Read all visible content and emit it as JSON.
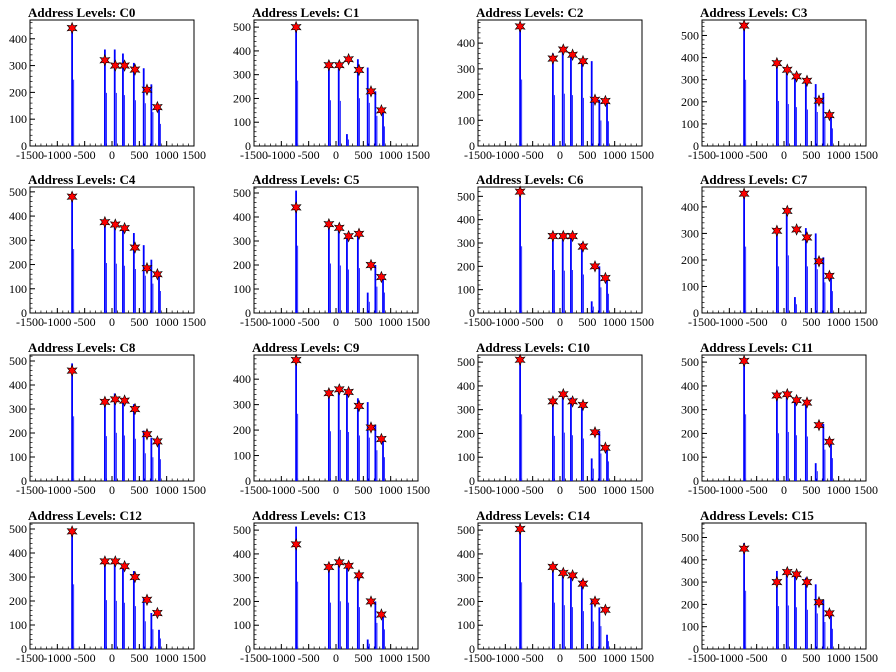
{
  "chart_data": [
    {
      "type": "bar",
      "title": "Address Levels: C0",
      "ylim": [
        0,
        470
      ],
      "yticks": [
        0,
        100,
        200,
        300,
        400
      ],
      "xlim": [
        -1500,
        1500
      ],
      "xticks": [
        -1500,
        -1000,
        -500,
        0,
        500,
        1000,
        1500
      ],
      "x": [
        -730,
        -130,
        50,
        200,
        400,
        580,
        720,
        860
      ],
      "values": [
        450,
        360,
        360,
        345,
        310,
        290,
        230,
        150
      ],
      "peaks": [
        {
          "x": -730,
          "y": 440
        },
        {
          "x": -130,
          "y": 320
        },
        {
          "x": 60,
          "y": 300
        },
        {
          "x": 230,
          "y": 300
        },
        {
          "x": 420,
          "y": 285
        },
        {
          "x": 640,
          "y": 210
        },
        {
          "x": 830,
          "y": 145
        }
      ]
    },
    {
      "type": "bar",
      "title": "Address Levels: C1",
      "ylim": [
        0,
        530
      ],
      "yticks": [
        0,
        100,
        200,
        300,
        400,
        500
      ],
      "xlim": [
        -1500,
        1500
      ],
      "xticks": [
        -1500,
        -1000,
        -500,
        0,
        500,
        1000,
        1500
      ],
      "x": [
        -730,
        -130,
        50,
        200,
        400,
        580,
        720,
        860
      ],
      "values": [
        500,
        350,
        345,
        50,
        365,
        330,
        230,
        150
      ],
      "peaks": [
        {
          "x": -730,
          "y": 500
        },
        {
          "x": -130,
          "y": 340
        },
        {
          "x": 60,
          "y": 340
        },
        {
          "x": 230,
          "y": 365
        },
        {
          "x": 420,
          "y": 320
        },
        {
          "x": 640,
          "y": 230
        },
        {
          "x": 830,
          "y": 150
        }
      ]
    },
    {
      "type": "bar",
      "title": "Address Levels: C2",
      "ylim": [
        0,
        490
      ],
      "yticks": [
        0,
        100,
        200,
        300,
        400
      ],
      "xlim": [
        -1500,
        1500
      ],
      "xticks": [
        -1500,
        -1000,
        -500,
        0,
        500,
        1000,
        1500
      ],
      "x": [
        -730,
        -130,
        50,
        200,
        400,
        580,
        720,
        860
      ],
      "values": [
        470,
        360,
        370,
        360,
        340,
        330,
        180,
        175
      ],
      "peaks": [
        {
          "x": -730,
          "y": 465
        },
        {
          "x": -130,
          "y": 340
        },
        {
          "x": 60,
          "y": 375
        },
        {
          "x": 230,
          "y": 355
        },
        {
          "x": 420,
          "y": 330
        },
        {
          "x": 640,
          "y": 180
        },
        {
          "x": 830,
          "y": 175
        }
      ]
    },
    {
      "type": "bar",
      "title": "Address Levels: C3",
      "ylim": [
        0,
        570
      ],
      "yticks": [
        0,
        100,
        200,
        300,
        400,
        500
      ],
      "xlim": [
        -1500,
        1500
      ],
      "xticks": [
        -1500,
        -1000,
        -500,
        0,
        500,
        1000,
        1500
      ],
      "x": [
        -730,
        -130,
        50,
        200,
        400,
        580,
        720,
        860
      ],
      "values": [
        545,
        370,
        345,
        320,
        300,
        280,
        240,
        145
      ],
      "peaks": [
        {
          "x": -730,
          "y": 545
        },
        {
          "x": -130,
          "y": 375
        },
        {
          "x": 60,
          "y": 345
        },
        {
          "x": 230,
          "y": 315
        },
        {
          "x": 420,
          "y": 295
        },
        {
          "x": 640,
          "y": 205
        },
        {
          "x": 830,
          "y": 140
        }
      ]
    },
    {
      "type": "bar",
      "title": "Address Levels: C4",
      "ylim": [
        0,
        520
      ],
      "yticks": [
        0,
        100,
        200,
        300,
        400,
        500
      ],
      "xlim": [
        -1500,
        1500
      ],
      "xticks": [
        -1500,
        -1000,
        -500,
        0,
        500,
        1000,
        1500
      ],
      "x": [
        -730,
        -130,
        50,
        200,
        400,
        580,
        720,
        860
      ],
      "values": [
        480,
        375,
        370,
        355,
        330,
        280,
        220,
        165
      ],
      "peaks": [
        {
          "x": -730,
          "y": 480
        },
        {
          "x": -130,
          "y": 375
        },
        {
          "x": 60,
          "y": 365
        },
        {
          "x": 230,
          "y": 350
        },
        {
          "x": 420,
          "y": 270
        },
        {
          "x": 640,
          "y": 185
        },
        {
          "x": 830,
          "y": 160
        }
      ]
    },
    {
      "type": "bar",
      "title": "Address Levels: C5",
      "ylim": [
        0,
        525
      ],
      "yticks": [
        0,
        100,
        200,
        300,
        400,
        500
      ],
      "xlim": [
        -1500,
        1500
      ],
      "xticks": [
        -1500,
        -1000,
        -500,
        0,
        500,
        1000,
        1500
      ],
      "x": [
        -730,
        -130,
        50,
        200,
        400,
        580,
        720,
        860
      ],
      "values": [
        510,
        375,
        360,
        330,
        340,
        85,
        200,
        155
      ],
      "peaks": [
        {
          "x": -730,
          "y": 440
        },
        {
          "x": -130,
          "y": 370
        },
        {
          "x": 60,
          "y": 355
        },
        {
          "x": 230,
          "y": 320
        },
        {
          "x": 420,
          "y": 330
        },
        {
          "x": 640,
          "y": 200
        },
        {
          "x": 830,
          "y": 150
        }
      ]
    },
    {
      "type": "bar",
      "title": "Address Levels: C6",
      "ylim": [
        0,
        540
      ],
      "yticks": [
        0,
        100,
        200,
        300,
        400,
        500
      ],
      "xlim": [
        -1500,
        1500
      ],
      "xticks": [
        -1500,
        -1000,
        -500,
        0,
        500,
        1000,
        1500
      ],
      "x": [
        -730,
        -130,
        50,
        200,
        400,
        580,
        720,
        860
      ],
      "values": [
        520,
        335,
        330,
        335,
        300,
        50,
        200,
        150
      ],
      "peaks": [
        {
          "x": -730,
          "y": 520
        },
        {
          "x": -130,
          "y": 330
        },
        {
          "x": 60,
          "y": 330
        },
        {
          "x": 230,
          "y": 330
        },
        {
          "x": 420,
          "y": 285
        },
        {
          "x": 640,
          "y": 200
        },
        {
          "x": 830,
          "y": 150
        }
      ]
    },
    {
      "type": "bar",
      "title": "Address Levels: C7",
      "ylim": [
        0,
        475
      ],
      "yticks": [
        0,
        100,
        200,
        300,
        400
      ],
      "xlim": [
        -1500,
        1500
      ],
      "xticks": [
        -1500,
        -1000,
        -500,
        0,
        500,
        1000,
        1500
      ],
      "x": [
        -730,
        -130,
        50,
        200,
        400,
        580,
        720,
        860
      ],
      "values": [
        455,
        320,
        395,
        60,
        320,
        300,
        210,
        150
      ],
      "peaks": [
        {
          "x": -730,
          "y": 450
        },
        {
          "x": -130,
          "y": 310
        },
        {
          "x": 60,
          "y": 385
        },
        {
          "x": 230,
          "y": 315
        },
        {
          "x": 420,
          "y": 285
        },
        {
          "x": 640,
          "y": 195
        },
        {
          "x": 830,
          "y": 140
        }
      ]
    },
    {
      "type": "bar",
      "title": "Address Levels: C8",
      "ylim": [
        0,
        525
      ],
      "yticks": [
        0,
        100,
        200,
        300,
        400,
        500
      ],
      "xlim": [
        -1500,
        1500
      ],
      "xticks": [
        -1500,
        -1000,
        -500,
        0,
        500,
        1000,
        1500
      ],
      "x": [
        -730,
        -130,
        50,
        200,
        400,
        580,
        720,
        860
      ],
      "values": [
        490,
        340,
        365,
        345,
        320,
        210,
        180,
        165
      ],
      "peaks": [
        {
          "x": -730,
          "y": 460
        },
        {
          "x": -130,
          "y": 330
        },
        {
          "x": 60,
          "y": 340
        },
        {
          "x": 230,
          "y": 335
        },
        {
          "x": 420,
          "y": 300
        },
        {
          "x": 640,
          "y": 195
        },
        {
          "x": 830,
          "y": 165
        }
      ]
    },
    {
      "type": "bar",
      "title": "Address Levels: C9",
      "ylim": [
        0,
        495
      ],
      "yticks": [
        0,
        100,
        200,
        300,
        400
      ],
      "xlim": [
        -1500,
        1500
      ],
      "xticks": [
        -1500,
        -1000,
        -500,
        0,
        500,
        1000,
        1500
      ],
      "x": [
        -730,
        -130,
        50,
        200,
        400,
        580,
        720,
        860
      ],
      "values": [
        480,
        355,
        365,
        350,
        325,
        310,
        220,
        170
      ],
      "peaks": [
        {
          "x": -730,
          "y": 475
        },
        {
          "x": -130,
          "y": 345
        },
        {
          "x": 60,
          "y": 360
        },
        {
          "x": 230,
          "y": 350
        },
        {
          "x": 420,
          "y": 295
        },
        {
          "x": 640,
          "y": 210
        },
        {
          "x": 830,
          "y": 165
        }
      ]
    },
    {
      "type": "bar",
      "title": "Address Levels: C10",
      "ylim": [
        0,
        530
      ],
      "yticks": [
        0,
        100,
        200,
        300,
        400,
        500
      ],
      "xlim": [
        -1500,
        1500
      ],
      "xticks": [
        -1500,
        -1000,
        -500,
        0,
        500,
        1000,
        1500
      ],
      "x": [
        -730,
        -130,
        50,
        200,
        400,
        580,
        720,
        860
      ],
      "values": [
        510,
        345,
        370,
        350,
        325,
        95,
        210,
        150
      ],
      "peaks": [
        {
          "x": -730,
          "y": 510
        },
        {
          "x": -130,
          "y": 335
        },
        {
          "x": 60,
          "y": 365
        },
        {
          "x": 230,
          "y": 335
        },
        {
          "x": 420,
          "y": 320
        },
        {
          "x": 640,
          "y": 205
        },
        {
          "x": 830,
          "y": 140
        }
      ]
    },
    {
      "type": "bar",
      "title": "Address Levels: C11",
      "ylim": [
        0,
        530
      ],
      "yticks": [
        0,
        100,
        200,
        300,
        400,
        500
      ],
      "xlim": [
        -1500,
        1500
      ],
      "xticks": [
        -1500,
        -1000,
        -500,
        0,
        500,
        1000,
        1500
      ],
      "x": [
        -730,
        -130,
        50,
        200,
        400,
        580,
        720,
        860
      ],
      "values": [
        510,
        365,
        375,
        350,
        340,
        75,
        240,
        175
      ],
      "peaks": [
        {
          "x": -730,
          "y": 505
        },
        {
          "x": -130,
          "y": 360
        },
        {
          "x": 60,
          "y": 365
        },
        {
          "x": 230,
          "y": 340
        },
        {
          "x": 420,
          "y": 330
        },
        {
          "x": 640,
          "y": 235
        },
        {
          "x": 830,
          "y": 165
        }
      ]
    },
    {
      "type": "bar",
      "title": "Address Levels: C12",
      "ylim": [
        0,
        525
      ],
      "yticks": [
        0,
        100,
        200,
        300,
        400,
        500
      ],
      "xlim": [
        -1500,
        1500
      ],
      "xticks": [
        -1500,
        -1000,
        -500,
        0,
        500,
        1000,
        1500
      ],
      "x": [
        -730,
        -130,
        50,
        200,
        400,
        580,
        720,
        860
      ],
      "values": [
        490,
        370,
        365,
        350,
        325,
        210,
        150,
        80
      ],
      "peaks": [
        {
          "x": -730,
          "y": 490
        },
        {
          "x": -130,
          "y": 365
        },
        {
          "x": 60,
          "y": 365
        },
        {
          "x": 230,
          "y": 345
        },
        {
          "x": 420,
          "y": 300
        },
        {
          "x": 640,
          "y": 205
        },
        {
          "x": 830,
          "y": 150
        }
      ]
    },
    {
      "type": "bar",
      "title": "Address Levels: C13",
      "ylim": [
        0,
        530
      ],
      "yticks": [
        0,
        100,
        200,
        300,
        400,
        500
      ],
      "xlim": [
        -1500,
        1500
      ],
      "xticks": [
        -1500,
        -1000,
        -500,
        0,
        500,
        1000,
        1500
      ],
      "x": [
        -730,
        -130,
        50,
        200,
        400,
        580,
        720,
        860
      ],
      "values": [
        515,
        355,
        365,
        355,
        320,
        40,
        200,
        150
      ],
      "peaks": [
        {
          "x": -730,
          "y": 440
        },
        {
          "x": -130,
          "y": 345
        },
        {
          "x": 60,
          "y": 365
        },
        {
          "x": 230,
          "y": 350
        },
        {
          "x": 420,
          "y": 310
        },
        {
          "x": 640,
          "y": 200
        },
        {
          "x": 830,
          "y": 145
        }
      ]
    },
    {
      "type": "bar",
      "title": "Address Levels: C14",
      "ylim": [
        0,
        530
      ],
      "yticks": [
        0,
        100,
        200,
        300,
        400,
        500
      ],
      "xlim": [
        -1500,
        1500
      ],
      "xticks": [
        -1500,
        -1000,
        -500,
        0,
        500,
        1000,
        1500
      ],
      "x": [
        -730,
        -130,
        50,
        200,
        400,
        580,
        720,
        860
      ],
      "values": [
        510,
        355,
        335,
        320,
        290,
        210,
        175,
        60
      ],
      "peaks": [
        {
          "x": -730,
          "y": 505
        },
        {
          "x": -130,
          "y": 345
        },
        {
          "x": 60,
          "y": 320
        },
        {
          "x": 230,
          "y": 310
        },
        {
          "x": 420,
          "y": 275
        },
        {
          "x": 640,
          "y": 200
        },
        {
          "x": 830,
          "y": 165
        }
      ]
    },
    {
      "type": "bar",
      "title": "Address Levels: C15",
      "ylim": [
        0,
        565
      ],
      "yticks": [
        0,
        100,
        200,
        300,
        400,
        500
      ],
      "xlim": [
        -1500,
        1500
      ],
      "xticks": [
        -1500,
        -1000,
        -500,
        0,
        500,
        1000,
        1500
      ],
      "x": [
        -730,
        -130,
        50,
        200,
        400,
        580,
        720,
        860
      ],
      "values": [
        475,
        350,
        355,
        340,
        320,
        290,
        220,
        165
      ],
      "peaks": [
        {
          "x": -730,
          "y": 450
        },
        {
          "x": -130,
          "y": 300
        },
        {
          "x": 60,
          "y": 345
        },
        {
          "x": 230,
          "y": 335
        },
        {
          "x": 420,
          "y": 300
        },
        {
          "x": 640,
          "y": 210
        },
        {
          "x": 830,
          "y": 160
        }
      ]
    }
  ]
}
